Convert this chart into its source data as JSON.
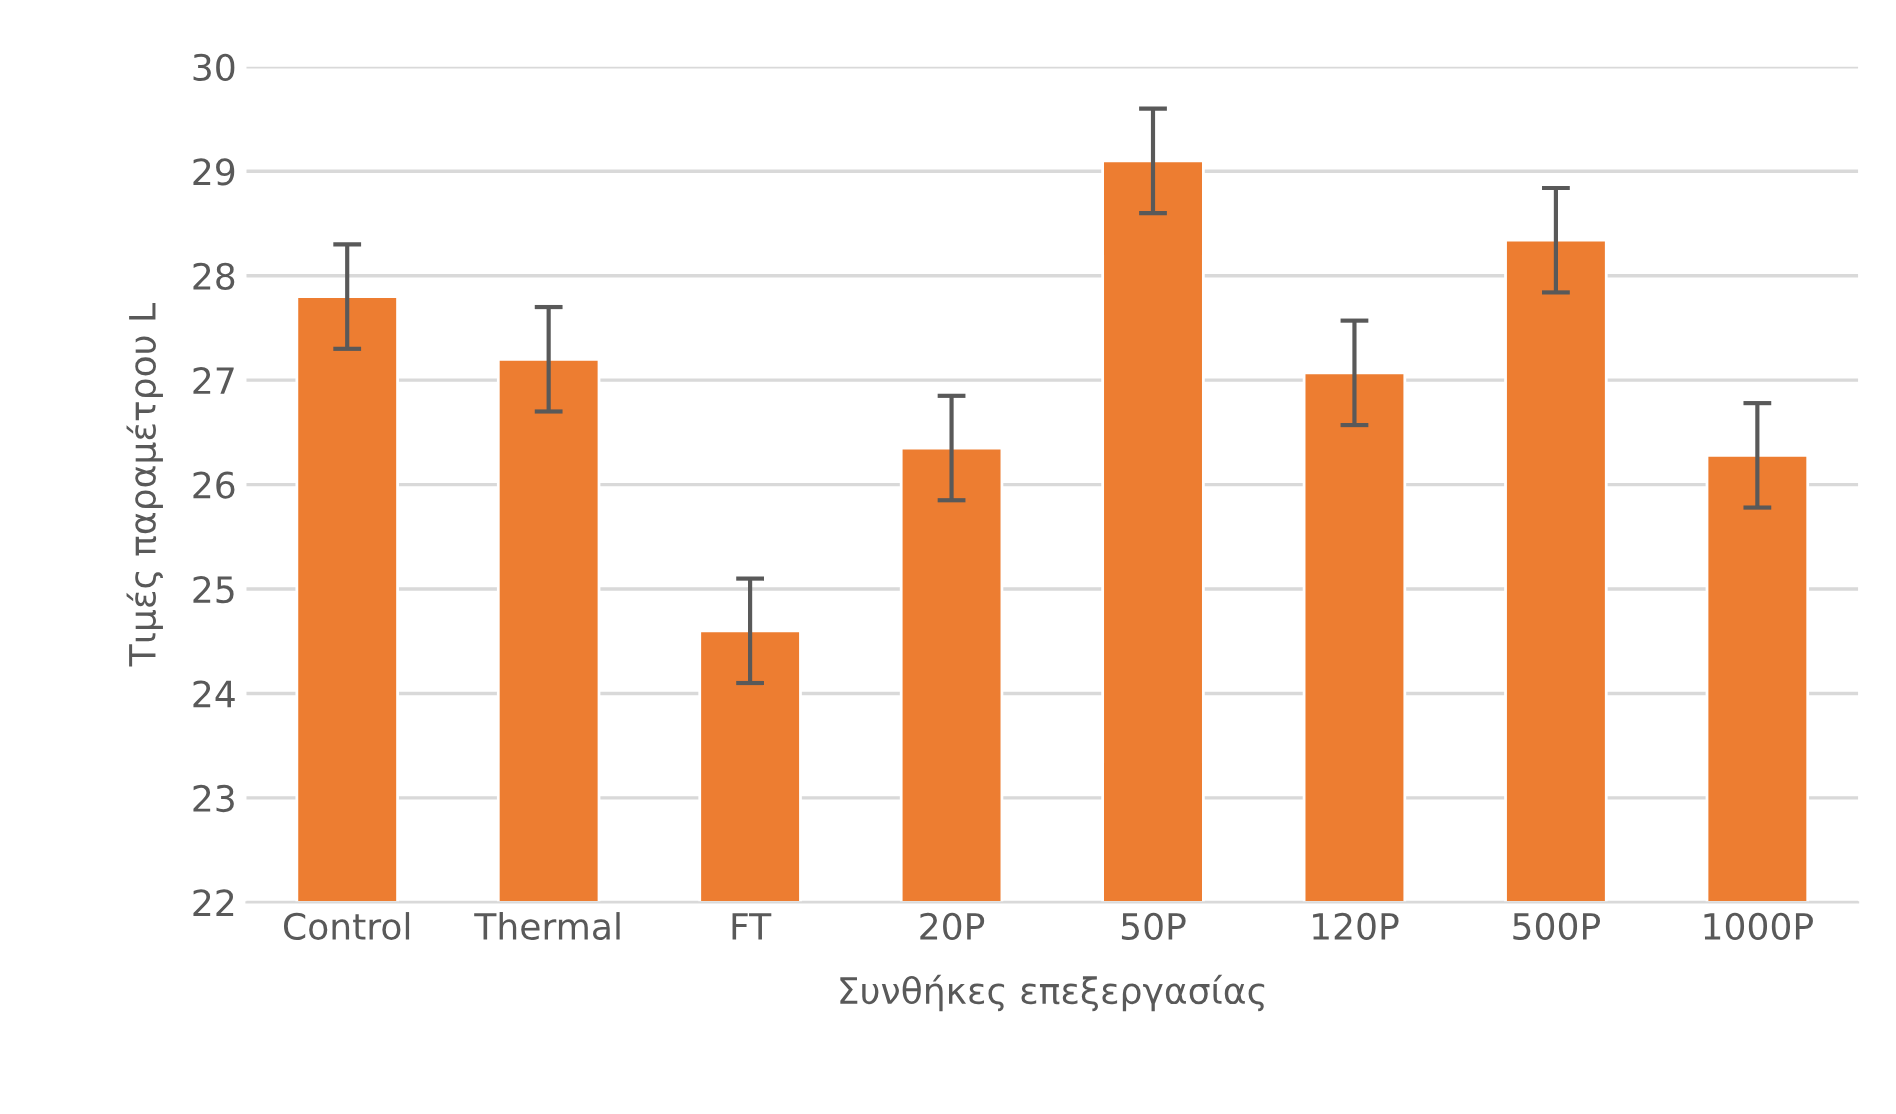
{
  "chart_data": {
    "type": "bar",
    "xlabel": "Συνθήκες επεξεργασίας",
    "ylabel": "Τιμές παραμέτρου L",
    "categories": [
      "Control",
      "Thermal",
      "FT",
      "20P",
      "50P",
      "120P",
      "500P",
      "1000P"
    ],
    "values": [
      27.8,
      27.2,
      24.6,
      26.35,
      29.1,
      27.07,
      28.34,
      26.28
    ],
    "errors": [
      0.5,
      0.5,
      0.5,
      0.5,
      0.5,
      0.5,
      0.5,
      0.5
    ],
    "color": "#ed7d31",
    "ylim": [
      22,
      30
    ],
    "yticks": [
      22,
      23,
      24,
      25,
      26,
      27,
      28,
      29,
      30
    ],
    "grid": "y",
    "legend": false
  }
}
